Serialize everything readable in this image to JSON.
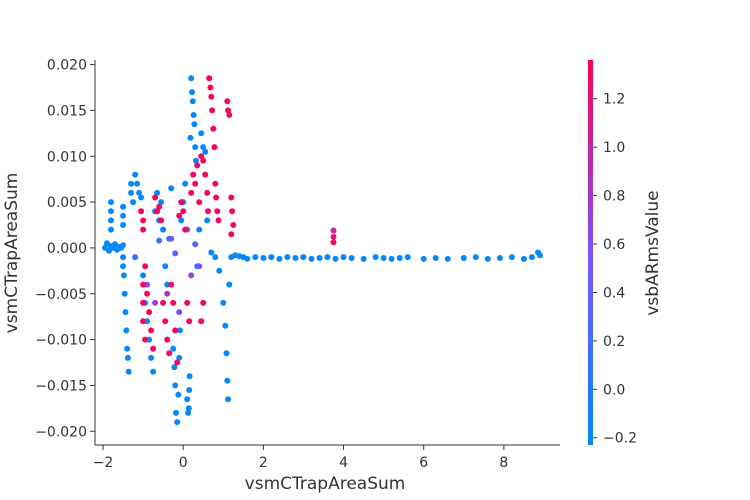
{
  "chart_data": {
    "type": "scatter",
    "title": "",
    "xlabel": "vsmCTrapAreaSum",
    "ylabel": "vsmCTrapAreaSum",
    "xlim": [
      -2.2,
      9.4
    ],
    "ylim": [
      -0.0215,
      0.0205
    ],
    "x_ticks": [
      -2,
      0,
      2,
      4,
      6,
      8
    ],
    "y_ticks": [
      -0.02,
      -0.015,
      -0.01,
      -0.005,
      0.0,
      0.005,
      0.01,
      0.015,
      0.02
    ],
    "y_tick_labels": [
      "−0.020",
      "−0.015",
      "−0.010",
      "−0.005",
      "0.000",
      "0.005",
      "0.010",
      "0.015",
      "0.020"
    ],
    "x_tick_labels": [
      "−2",
      "0",
      "2",
      "4",
      "6",
      "8"
    ],
    "grid": false,
    "colorbar": {
      "label": "vsbARmsValue",
      "range": [
        -0.23,
        1.36
      ],
      "ticks": [
        -0.2,
        0.0,
        0.2,
        0.4,
        0.6,
        0.8,
        1.0,
        1.2
      ],
      "tick_labels": [
        "−0.2",
        "0.0",
        "0.2",
        "0.4",
        "0.6",
        "0.8",
        "1.0",
        "1.2"
      ],
      "colors": [
        "#008bfa",
        "#7c52ff",
        "#ff0052"
      ]
    },
    "series": [
      {
        "points": [
          [
            -1.95,
            0.0,
            -0.2
          ],
          [
            -1.9,
            0.0005,
            -0.2
          ],
          [
            -1.85,
            -0.0003,
            -0.2
          ],
          [
            -1.8,
            0.0002,
            -0.2
          ],
          [
            -1.75,
            0.0,
            -0.2
          ],
          [
            -1.7,
            0.0004,
            -0.2
          ],
          [
            -1.65,
            -0.0002,
            -0.2
          ],
          [
            -1.6,
            0.0001,
            -0.2
          ],
          [
            -1.55,
            0.0,
            -0.2
          ],
          [
            -1.5,
            0.0003,
            -0.2
          ],
          [
            -1.8,
            0.005,
            -0.2
          ],
          [
            -1.8,
            0.004,
            -0.2
          ],
          [
            -1.8,
            0.003,
            -0.2
          ],
          [
            -1.8,
            0.002,
            -0.2
          ],
          [
            -1.5,
            0.0045,
            -0.2
          ],
          [
            -1.5,
            0.0035,
            -0.2
          ],
          [
            -1.5,
            0.0025,
            -0.2
          ],
          [
            -1.5,
            -0.001,
            -0.2
          ],
          [
            -1.5,
            -0.002,
            -0.2
          ],
          [
            -1.48,
            -0.003,
            -0.2
          ],
          [
            -1.46,
            -0.005,
            -0.2
          ],
          [
            -1.44,
            -0.007,
            -0.2
          ],
          [
            -1.42,
            -0.009,
            -0.2
          ],
          [
            -1.4,
            -0.011,
            -0.2
          ],
          [
            -1.38,
            -0.012,
            -0.2
          ],
          [
            -1.36,
            -0.0135,
            -0.2
          ],
          [
            -1.3,
            0.007,
            -0.2
          ],
          [
            -1.3,
            0.006,
            -0.2
          ],
          [
            -1.25,
            0.005,
            -0.2
          ],
          [
            -1.2,
            0.008,
            -0.2
          ],
          [
            -1.15,
            0.007,
            -0.2
          ],
          [
            -1.1,
            0.006,
            -0.2
          ],
          [
            -1.05,
            0.0055,
            -0.2
          ],
          [
            -1.0,
            -0.003,
            -0.2
          ],
          [
            -0.95,
            -0.006,
            -0.2
          ],
          [
            -0.9,
            -0.008,
            -0.2
          ],
          [
            -0.85,
            -0.01,
            -0.2
          ],
          [
            -0.8,
            -0.012,
            -0.2
          ],
          [
            -0.75,
            -0.0135,
            -0.2
          ],
          [
            -0.7,
            0.004,
            -0.2
          ],
          [
            -0.65,
            0.006,
            -0.2
          ],
          [
            -0.6,
            0.003,
            -0.2
          ],
          [
            -0.55,
            0.005,
            -0.2
          ],
          [
            -0.5,
            0.002,
            -0.2
          ],
          [
            -0.45,
            -0.002,
            -0.2
          ],
          [
            -0.4,
            -0.004,
            -0.2
          ],
          [
            -0.35,
            0.001,
            -0.2
          ],
          [
            -0.3,
            0.0065,
            -0.2
          ],
          [
            -0.25,
            -0.011,
            -0.2
          ],
          [
            -0.22,
            -0.013,
            -0.2
          ],
          [
            -0.2,
            -0.015,
            -0.2
          ],
          [
            -0.18,
            -0.018,
            -0.2
          ],
          [
            -0.15,
            -0.019,
            -0.2
          ],
          [
            -0.12,
            -0.016,
            -0.2
          ],
          [
            -0.1,
            -0.012,
            -0.2
          ],
          [
            -0.08,
            -0.009,
            -0.2
          ],
          [
            -0.05,
            0.003,
            -0.2
          ],
          [
            0.0,
            0.005,
            -0.2
          ],
          [
            0.05,
            0.007,
            -0.2
          ],
          [
            0.1,
            -0.0165,
            -0.2
          ],
          [
            0.12,
            -0.018,
            -0.2
          ],
          [
            0.14,
            -0.0175,
            -0.2
          ],
          [
            0.15,
            -0.0155,
            -0.2
          ],
          [
            0.16,
            -0.014,
            -0.2
          ],
          [
            0.18,
            0.012,
            -0.2
          ],
          [
            0.2,
            0.0185,
            -0.2
          ],
          [
            0.22,
            0.017,
            -0.2
          ],
          [
            0.24,
            0.016,
            -0.2
          ],
          [
            0.26,
            0.0145,
            -0.2
          ],
          [
            0.28,
            0.0135,
            -0.2
          ],
          [
            0.3,
            0.011,
            -0.2
          ],
          [
            0.32,
            0.0095,
            -0.2
          ],
          [
            0.35,
            -0.002,
            -0.2
          ],
          [
            0.4,
            0.002,
            -0.2
          ],
          [
            0.45,
            0.0125,
            -0.2
          ],
          [
            0.5,
            0.011,
            -0.2
          ],
          [
            0.55,
            0.0105,
            -0.2
          ],
          [
            0.6,
            0.003,
            -0.2
          ],
          [
            0.7,
            -0.0005,
            -0.2
          ],
          [
            0.8,
            -0.001,
            -0.2
          ],
          [
            0.9,
            -0.0025,
            -0.2
          ],
          [
            1.0,
            -0.006,
            -0.2
          ],
          [
            1.05,
            -0.0085,
            -0.2
          ],
          [
            1.08,
            -0.0115,
            -0.2
          ],
          [
            1.1,
            -0.0145,
            -0.2
          ],
          [
            1.12,
            -0.0165,
            -0.2
          ],
          [
            1.15,
            -0.004,
            -0.2
          ],
          [
            1.2,
            -0.001,
            -0.2
          ],
          [
            1.3,
            -0.0008,
            -0.2
          ],
          [
            1.4,
            -0.0009,
            -0.2
          ],
          [
            1.5,
            -0.001,
            -0.2
          ],
          [
            1.6,
            -0.0012,
            -0.2
          ],
          [
            1.8,
            -0.001,
            -0.2
          ],
          [
            2.0,
            -0.0011,
            -0.2
          ],
          [
            2.2,
            -0.001,
            -0.2
          ],
          [
            2.4,
            -0.0012,
            -0.2
          ],
          [
            2.6,
            -0.001,
            -0.2
          ],
          [
            2.8,
            -0.0011,
            -0.2
          ],
          [
            3.0,
            -0.001,
            -0.2
          ],
          [
            3.2,
            -0.0012,
            -0.2
          ],
          [
            3.4,
            -0.0011,
            -0.2
          ],
          [
            3.6,
            -0.001,
            -0.2
          ],
          [
            3.8,
            -0.0012,
            -0.2
          ],
          [
            4.0,
            -0.001,
            -0.2
          ],
          [
            4.2,
            -0.0011,
            -0.2
          ],
          [
            4.5,
            -0.0012,
            -0.2
          ],
          [
            4.8,
            -0.001,
            -0.2
          ],
          [
            5.0,
            -0.0011,
            -0.2
          ],
          [
            5.2,
            -0.0012,
            -0.2
          ],
          [
            5.4,
            -0.0011,
            -0.2
          ],
          [
            5.6,
            -0.001,
            -0.2
          ],
          [
            6.0,
            -0.0012,
            -0.2
          ],
          [
            6.3,
            -0.0011,
            -0.2
          ],
          [
            6.6,
            -0.0012,
            -0.2
          ],
          [
            7.0,
            -0.0011,
            -0.2
          ],
          [
            7.3,
            -0.001,
            -0.2
          ],
          [
            7.6,
            -0.0012,
            -0.2
          ],
          [
            7.9,
            -0.0011,
            -0.2
          ],
          [
            8.2,
            -0.001,
            -0.2
          ],
          [
            8.5,
            -0.0012,
            -0.2
          ],
          [
            8.7,
            -0.001,
            -0.2
          ],
          [
            8.85,
            -0.0005,
            -0.2
          ],
          [
            8.9,
            -0.0008,
            -0.2
          ],
          [
            -1.2,
            -0.001,
            0.1
          ],
          [
            -0.6,
            0.0008,
            0.2
          ],
          [
            -0.2,
            -0.0006,
            0.3
          ],
          [
            0.3,
            0.0004,
            0.2
          ],
          [
            -0.9,
            -0.004,
            0.6
          ],
          [
            -0.7,
            -0.006,
            0.7
          ],
          [
            -0.4,
            -0.005,
            0.8
          ],
          [
            -0.1,
            -0.007,
            0.6
          ],
          [
            0.2,
            -0.003,
            0.7
          ],
          [
            0.4,
            -0.002,
            0.5
          ],
          [
            -0.3,
            0.001,
            0.6
          ],
          [
            0.1,
            0.002,
            0.5
          ],
          [
            -1.05,
            0.004,
            1.3
          ],
          [
            -1.0,
            0.003,
            1.3
          ],
          [
            -1.0,
            0.002,
            1.3
          ],
          [
            -0.95,
            -0.002,
            1.3
          ],
          [
            -1.0,
            -0.004,
            1.3
          ],
          [
            -1.0,
            -0.006,
            1.3
          ],
          [
            -1.0,
            -0.008,
            1.3
          ],
          [
            -0.95,
            -0.01,
            1.3
          ],
          [
            -0.9,
            -0.005,
            1.3
          ],
          [
            -0.85,
            -0.007,
            1.3
          ],
          [
            -0.8,
            -0.009,
            1.3
          ],
          [
            -0.75,
            -0.011,
            1.3
          ],
          [
            -0.7,
            0.0055,
            1.3
          ],
          [
            -0.65,
            0.004,
            1.3
          ],
          [
            -0.6,
            0.0045,
            1.3
          ],
          [
            -0.55,
            0.003,
            1.3
          ],
          [
            -0.5,
            -0.006,
            1.3
          ],
          [
            -0.45,
            -0.008,
            1.3
          ],
          [
            -0.4,
            -0.01,
            1.3
          ],
          [
            -0.35,
            -0.0115,
            1.3
          ],
          [
            -0.3,
            -0.004,
            1.3
          ],
          [
            -0.25,
            -0.006,
            1.3
          ],
          [
            -0.2,
            -0.009,
            1.3
          ],
          [
            -0.15,
            -0.0125,
            1.3
          ],
          [
            -0.1,
            0.0035,
            1.3
          ],
          [
            -0.05,
            0.005,
            1.3
          ],
          [
            0.0,
            0.004,
            1.3
          ],
          [
            0.05,
            0.002,
            1.3
          ],
          [
            0.1,
            -0.006,
            1.3
          ],
          [
            0.15,
            -0.008,
            1.3
          ],
          [
            0.2,
            0.006,
            1.3
          ],
          [
            0.25,
            0.008,
            1.3
          ],
          [
            0.3,
            0.007,
            1.3
          ],
          [
            0.35,
            0.009,
            1.3
          ],
          [
            0.4,
            0.005,
            1.3
          ],
          [
            0.45,
            0.01,
            1.3
          ],
          [
            0.5,
            0.0095,
            1.3
          ],
          [
            0.55,
            0.008,
            1.3
          ],
          [
            0.6,
            0.006,
            1.3
          ],
          [
            0.62,
            0.004,
            1.3
          ],
          [
            0.65,
            0.0185,
            1.3
          ],
          [
            0.68,
            0.0175,
            1.3
          ],
          [
            0.7,
            0.0165,
            1.3
          ],
          [
            0.72,
            0.015,
            1.3
          ],
          [
            0.75,
            0.013,
            1.3
          ],
          [
            0.78,
            0.011,
            1.3
          ],
          [
            0.8,
            0.007,
            1.3
          ],
          [
            0.82,
            0.0055,
            1.3
          ],
          [
            0.85,
            0.004,
            1.3
          ],
          [
            0.88,
            0.003,
            1.3
          ],
          [
            0.5,
            -0.006,
            1.3
          ],
          [
            0.45,
            -0.008,
            1.3
          ],
          [
            1.1,
            0.016,
            1.3
          ],
          [
            1.12,
            0.015,
            1.3
          ],
          [
            1.15,
            0.0145,
            1.3
          ],
          [
            1.2,
            0.0055,
            1.3
          ],
          [
            1.22,
            0.004,
            1.3
          ],
          [
            1.25,
            0.0025,
            1.3
          ],
          [
            1.2,
            0.0015,
            1.3
          ],
          [
            3.75,
            0.0019,
            1.0
          ],
          [
            3.75,
            0.0012,
            1.2
          ],
          [
            3.75,
            0.0006,
            1.3
          ]
        ]
      }
    ]
  }
}
